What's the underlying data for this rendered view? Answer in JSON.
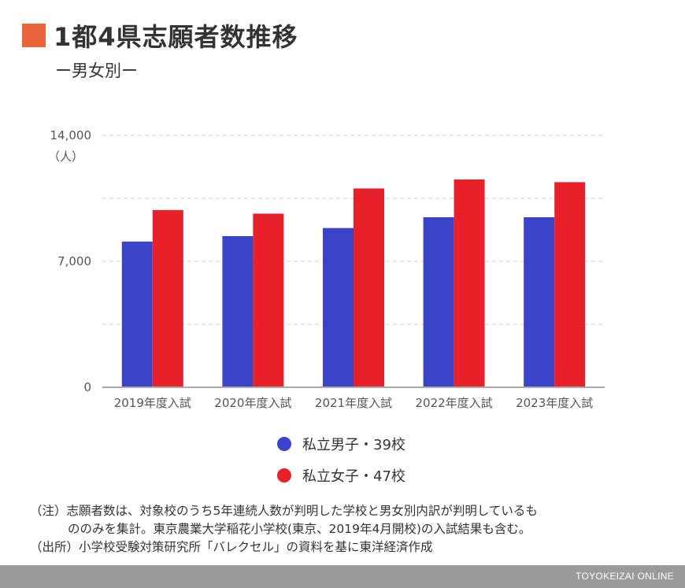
{
  "title": "1都4県志願者数推移",
  "subtitle": "ー男女別ー",
  "chart_data": {
    "type": "bar",
    "unit": "（人）",
    "categories": [
      "2019年度入試",
      "2020年度入試",
      "2021年度入試",
      "2022年度入試",
      "2023年度入試"
    ],
    "series": [
      {
        "name": "私立男子・39校",
        "color": "#3b44c8",
        "values": [
          8100,
          8400,
          8850,
          9450,
          9450
        ]
      },
      {
        "name": "私立女子・47校",
        "color": "#e8202a",
        "values": [
          9850,
          9650,
          11050,
          11550,
          11400
        ]
      }
    ],
    "ylim": [
      0,
      14000
    ],
    "y_ticks": [
      "0",
      "7,000",
      "14,000"
    ],
    "y_tick_values": [
      0,
      7000,
      14000
    ],
    "gridlines": [
      3500,
      7000,
      10500,
      14000
    ],
    "grid": true,
    "legend_position": "bottom"
  },
  "legend": [
    {
      "label": "私立男子・39校",
      "color": "#3b44c8"
    },
    {
      "label": "私立女子・47校",
      "color": "#e8202a"
    }
  ],
  "notes": {
    "note1_line1": "（注）志願者数は、対象校のうち5年連続人数が判明した学校と男女別内訳が判明しているも",
    "note1_line2": "ののみを集計。東京農業大学稲花小学校(東京、2019年4月開校)の入試結果も含む。",
    "source": "（出所）小学校受験対策研究所「バレクセル」の資料を基に東洋経済作成"
  },
  "footer": "TOYOKEIZAI ONLINE"
}
